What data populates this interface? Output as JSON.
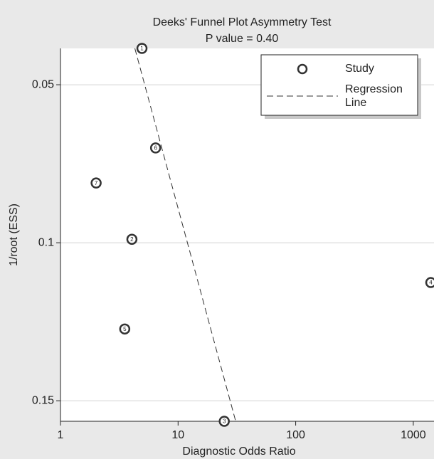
{
  "chart_data": {
    "type": "scatter",
    "title": "Deeks' Funnel Plot Asymmetry Test",
    "subtitle": "P value = 0.40",
    "x_label": "Diagnostic Odds Ratio",
    "y_label": "1/root (ESS)",
    "xscale": "log",
    "y_inverted": true,
    "xlim": [
      1,
      1500
    ],
    "ylim": [
      0.0385,
      0.1565
    ],
    "xticks": [
      1,
      10,
      100,
      1000
    ],
    "yticks": [
      0.05,
      0.1,
      0.15
    ],
    "grid": true,
    "legend": "upper right",
    "series": [
      {
        "name": "Study",
        "type": "scatter",
        "color": "#333333",
        "labels": [
          "1",
          "2",
          "3",
          "4",
          "5",
          "6",
          "7"
        ],
        "x": [
          4.93,
          4.05,
          24.7,
          1409,
          3.52,
          6.44,
          2.01
        ],
        "values": [
          0.0385,
          0.0989,
          0.1565,
          0.1126,
          0.1273,
          0.07,
          0.0811
        ]
      },
      {
        "name": "Regression Line",
        "type": "line",
        "color": "#333333",
        "x": [
          4.29,
          30.9
        ],
        "values": [
          0.0385,
          0.1565
        ]
      }
    ]
  }
}
